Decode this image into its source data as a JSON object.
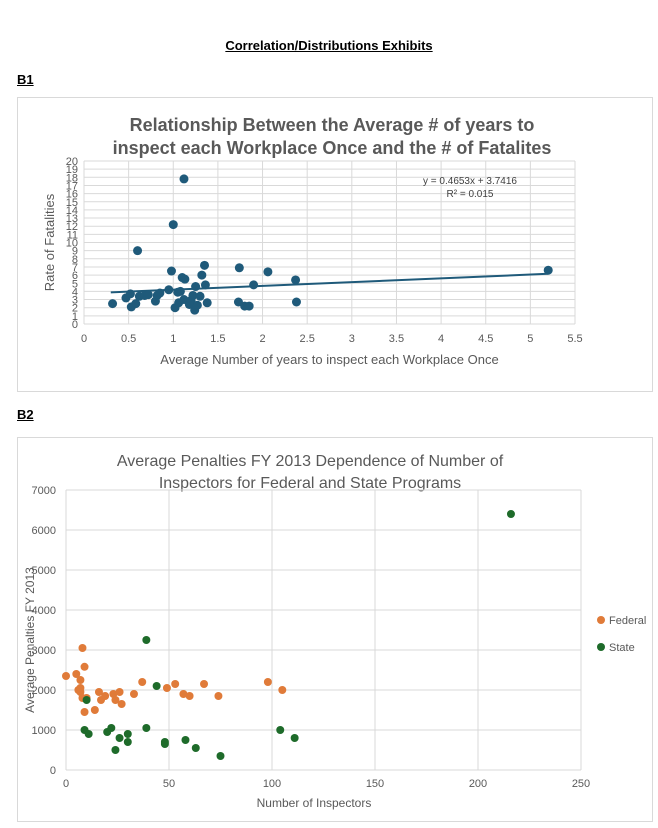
{
  "page": {
    "title": "Correlation/Distributions Exhibits",
    "sections": [
      {
        "label": "B1"
      },
      {
        "label": "B2"
      }
    ]
  },
  "colors": {
    "b1_marker": "#1f5a7a",
    "b1_trend": "#1f5a7a",
    "b1_title": "#595959",
    "federal": "#e07b39",
    "state": "#1e6b2a",
    "grid": "#d9d9d9",
    "axis_text": "#595959"
  },
  "chart_data": [
    {
      "id": "b1",
      "type": "scatter",
      "title": "Relationship Between the Average # of years to inspect each Workplace Once and the # of Fatalites",
      "title_lines": [
        "Relationship Between the Average # of years to",
        "inspect each Workplace Once and the # of Fatalites"
      ],
      "xlabel": "Average Number of years to inspect each Workplace Once",
      "ylabel": "Rate of Fatalities",
      "xlim": [
        0,
        5.5
      ],
      "ylim": [
        0,
        20
      ],
      "xticks": [
        "0",
        "0.5",
        "1",
        "1.5",
        "2",
        "2.5",
        "3",
        "3.5",
        "4",
        "4.5",
        "5",
        "5.5"
      ],
      "yticks": [
        "0",
        "1",
        "2",
        "3",
        "4",
        "5",
        "6",
        "7",
        "8",
        "9",
        "10",
        "11",
        "12",
        "13",
        "14",
        "15",
        "16",
        "17",
        "18",
        "19",
        "20"
      ],
      "grid": true,
      "trendline": {
        "slope": 0.4653,
        "intercept": 3.7416
      },
      "equation_text": "y = 0.4653x + 3.7416",
      "r2_text": "R² = 0.015",
      "points": [
        [
          0.32,
          2.5
        ],
        [
          0.47,
          3.2
        ],
        [
          0.52,
          3.7
        ],
        [
          0.53,
          2.1
        ],
        [
          0.58,
          2.5
        ],
        [
          0.6,
          9.0
        ],
        [
          0.62,
          3.4
        ],
        [
          0.68,
          3.5
        ],
        [
          0.72,
          3.6
        ],
        [
          0.8,
          2.8
        ],
        [
          0.82,
          3.5
        ],
        [
          0.85,
          3.8
        ],
        [
          0.95,
          4.2
        ],
        [
          0.98,
          6.5
        ],
        [
          1.0,
          12.2
        ],
        [
          1.02,
          2.0
        ],
        [
          1.05,
          3.9
        ],
        [
          1.06,
          2.6
        ],
        [
          1.08,
          4.0
        ],
        [
          1.1,
          5.7
        ],
        [
          1.12,
          3.0
        ],
        [
          1.12,
          17.8
        ],
        [
          1.13,
          5.5
        ],
        [
          1.18,
          2.4
        ],
        [
          1.2,
          2.9
        ],
        [
          1.22,
          3.5
        ],
        [
          1.24,
          1.7
        ],
        [
          1.25,
          4.6
        ],
        [
          1.27,
          2.3
        ],
        [
          1.3,
          3.4
        ],
        [
          1.32,
          6.0
        ],
        [
          1.35,
          7.2
        ],
        [
          1.36,
          4.8
        ],
        [
          1.38,
          2.6
        ],
        [
          1.73,
          2.7
        ],
        [
          1.74,
          6.9
        ],
        [
          1.8,
          2.2
        ],
        [
          1.85,
          2.2
        ],
        [
          1.9,
          4.8
        ],
        [
          2.06,
          6.4
        ],
        [
          2.37,
          5.4
        ],
        [
          2.38,
          2.7
        ],
        [
          5.2,
          6.6
        ]
      ]
    },
    {
      "id": "b2",
      "type": "scatter",
      "title": "Average Penalties FY 2013 Dependence of Number of Inspectors for Federal and State Programs",
      "title_lines": [
        "Average Penalties FY 2013 Dependence of Number of",
        "Inspectors for Federal and State Programs"
      ],
      "xlabel": "Number of Inspectors",
      "ylabel": "Average Penalties FY 2013",
      "xlim": [
        0,
        250
      ],
      "ylim": [
        0,
        7000
      ],
      "xticks": [
        "0",
        "50",
        "100",
        "150",
        "200",
        "250"
      ],
      "yticks": [
        "0",
        "1000",
        "2000",
        "3000",
        "4000",
        "5000",
        "6000",
        "7000"
      ],
      "grid": true,
      "legend_position": "right",
      "series": [
        {
          "name": "Federal",
          "points": [
            [
              0,
              2350
            ],
            [
              5,
              2400
            ],
            [
              6,
              2000
            ],
            [
              7,
              1950
            ],
            [
              7,
              2050
            ],
            [
              7,
              2250
            ],
            [
              8,
              3050
            ],
            [
              8,
              1800
            ],
            [
              9,
              2580
            ],
            [
              9,
              1450
            ],
            [
              10,
              1800
            ],
            [
              14,
              1500
            ],
            [
              16,
              1950
            ],
            [
              17,
              1750
            ],
            [
              19,
              1850
            ],
            [
              23,
              1900
            ],
            [
              24,
              1750
            ],
            [
              26,
              1950
            ],
            [
              27,
              1650
            ],
            [
              33,
              1900
            ],
            [
              37,
              2200
            ],
            [
              49,
              2050
            ],
            [
              53,
              2150
            ],
            [
              57,
              1900
            ],
            [
              60,
              1850
            ],
            [
              67,
              2150
            ],
            [
              74,
              1850
            ],
            [
              98,
              2200
            ],
            [
              105,
              2000
            ]
          ]
        },
        {
          "name": "State",
          "points": [
            [
              9,
              1000
            ],
            [
              10,
              1750
            ],
            [
              11,
              900
            ],
            [
              20,
              950
            ],
            [
              22,
              1050
            ],
            [
              24,
              500
            ],
            [
              26,
              800
            ],
            [
              30,
              900
            ],
            [
              30,
              700
            ],
            [
              39,
              3250
            ],
            [
              39,
              1050
            ],
            [
              44,
              2100
            ],
            [
              48,
              700
            ],
            [
              48,
              650
            ],
            [
              58,
              750
            ],
            [
              63,
              550
            ],
            [
              75,
              350
            ],
            [
              104,
              1000
            ],
            [
              111,
              800
            ],
            [
              216,
              6400
            ]
          ]
        }
      ]
    }
  ]
}
